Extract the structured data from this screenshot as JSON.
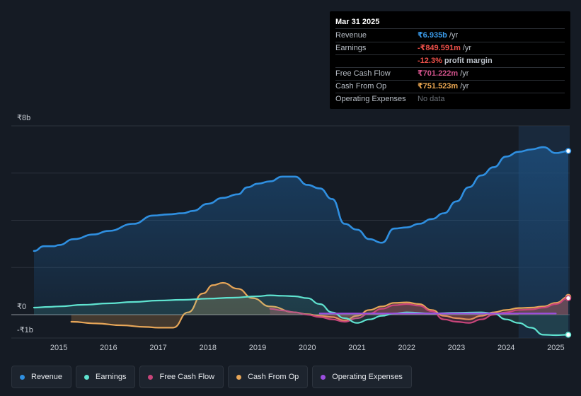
{
  "tooltip": {
    "date": "Mar 31 2025",
    "rows": [
      {
        "label": "Revenue",
        "value": "₹6.935b",
        "unit": "/yr",
        "color": "#3a9bea"
      },
      {
        "label": "Earnings",
        "value": "-₹849.591m",
        "unit": "/yr",
        "color": "#f0514a"
      },
      {
        "label": "",
        "value": "-12.3%",
        "unit": "profit margin",
        "color": "#f0514a"
      },
      {
        "label": "Free Cash Flow",
        "value": "₹701.222m",
        "unit": "/yr",
        "color": "#d0528a"
      },
      {
        "label": "Cash From Op",
        "value": "₹751.523m",
        "unit": "/yr",
        "color": "#eaa651"
      },
      {
        "label": "Operating Expenses",
        "value": "No data",
        "unit": "",
        "color": "#6b7178"
      }
    ]
  },
  "legend": [
    {
      "label": "Revenue",
      "color": "#2f8fe0"
    },
    {
      "label": "Earnings",
      "color": "#5fe3d0"
    },
    {
      "label": "Free Cash Flow",
      "color": "#c8457a"
    },
    {
      "label": "Cash From Op",
      "color": "#e7a658"
    },
    {
      "label": "Operating Expenses",
      "color": "#9b4fe0"
    }
  ],
  "chart_data": {
    "type": "line",
    "title": "",
    "xlabel": "",
    "ylabel": "",
    "y_unit": "₹ billions",
    "ylim": [
      -1,
      8
    ],
    "y_tick_labels": [
      {
        "value": 8,
        "label": "₹8b"
      },
      {
        "value": 0,
        "label": "₹0"
      },
      {
        "value": -1,
        "label": "-₹1b"
      }
    ],
    "x_tick_labels": [
      "2015",
      "2016",
      "2017",
      "2018",
      "2019",
      "2020",
      "2021",
      "2022",
      "2023",
      "2024",
      "2025"
    ],
    "highlight_range": [
      2024.25,
      2025.25
    ],
    "series": [
      {
        "name": "Revenue",
        "color": "#2f8fe0",
        "fill": true,
        "points": [
          [
            2014.5,
            2.7
          ],
          [
            2014.7,
            2.9
          ],
          [
            2014.9,
            2.9
          ],
          [
            2015.0,
            2.95
          ],
          [
            2015.3,
            3.2
          ],
          [
            2015.7,
            3.4
          ],
          [
            2016.0,
            3.55
          ],
          [
            2016.5,
            3.85
          ],
          [
            2016.9,
            4.2
          ],
          [
            2017.2,
            4.25
          ],
          [
            2017.5,
            4.3
          ],
          [
            2017.7,
            4.4
          ],
          [
            2018.0,
            4.7
          ],
          [
            2018.3,
            4.95
          ],
          [
            2018.6,
            5.1
          ],
          [
            2018.8,
            5.4
          ],
          [
            2019.0,
            5.55
          ],
          [
            2019.25,
            5.65
          ],
          [
            2019.5,
            5.85
          ],
          [
            2019.75,
            5.85
          ],
          [
            2020.0,
            5.5
          ],
          [
            2020.25,
            5.35
          ],
          [
            2020.5,
            4.9
          ],
          [
            2020.75,
            3.85
          ],
          [
            2021.0,
            3.6
          ],
          [
            2021.25,
            3.2
          ],
          [
            2021.5,
            3.05
          ],
          [
            2021.75,
            3.65
          ],
          [
            2022.0,
            3.7
          ],
          [
            2022.25,
            3.85
          ],
          [
            2022.5,
            4.05
          ],
          [
            2022.75,
            4.3
          ],
          [
            2023.0,
            4.8
          ],
          [
            2023.25,
            5.4
          ],
          [
            2023.5,
            5.9
          ],
          [
            2023.75,
            6.25
          ],
          [
            2024.0,
            6.7
          ],
          [
            2024.25,
            6.9
          ],
          [
            2024.5,
            7.0
          ],
          [
            2024.75,
            7.1
          ],
          [
            2025.0,
            6.85
          ],
          [
            2025.25,
            6.935
          ]
        ]
      },
      {
        "name": "Earnings",
        "color": "#5fe3d0",
        "fill": true,
        "points": [
          [
            2014.5,
            0.3
          ],
          [
            2014.8,
            0.33
          ],
          [
            2015.0,
            0.35
          ],
          [
            2015.5,
            0.42
          ],
          [
            2016.0,
            0.48
          ],
          [
            2016.5,
            0.54
          ],
          [
            2017.0,
            0.6
          ],
          [
            2017.5,
            0.63
          ],
          [
            2018.0,
            0.68
          ],
          [
            2018.5,
            0.72
          ],
          [
            2019.0,
            0.78
          ],
          [
            2019.25,
            0.82
          ],
          [
            2019.5,
            0.8
          ],
          [
            2019.75,
            0.78
          ],
          [
            2020.0,
            0.7
          ],
          [
            2020.25,
            0.45
          ],
          [
            2020.5,
            0.1
          ],
          [
            2020.75,
            -0.15
          ],
          [
            2021.0,
            -0.35
          ],
          [
            2021.25,
            -0.2
          ],
          [
            2021.5,
            -0.05
          ],
          [
            2021.75,
            0.05
          ],
          [
            2022.0,
            0.1
          ],
          [
            2022.5,
            0.05
          ],
          [
            2023.0,
            0.08
          ],
          [
            2023.5,
            0.1
          ],
          [
            2023.75,
            0.05
          ],
          [
            2024.0,
            -0.2
          ],
          [
            2024.25,
            -0.35
          ],
          [
            2024.5,
            -0.55
          ],
          [
            2024.75,
            -0.85
          ],
          [
            2025.0,
            -0.87
          ],
          [
            2025.25,
            -0.85
          ]
        ]
      },
      {
        "name": "Free Cash Flow",
        "color": "#c8457a",
        "fill": true,
        "points": [
          [
            2019.25,
            0.25
          ],
          [
            2019.5,
            0.18
          ],
          [
            2019.75,
            0.1
          ],
          [
            2020.0,
            0.0
          ],
          [
            2020.25,
            -0.1
          ],
          [
            2020.5,
            -0.2
          ],
          [
            2020.75,
            -0.3
          ],
          [
            2021.0,
            -0.15
          ],
          [
            2021.25,
            0.05
          ],
          [
            2021.5,
            0.25
          ],
          [
            2021.75,
            0.4
          ],
          [
            2022.0,
            0.45
          ],
          [
            2022.25,
            0.38
          ],
          [
            2022.5,
            0.15
          ],
          [
            2022.75,
            -0.2
          ],
          [
            2023.0,
            -0.3
          ],
          [
            2023.25,
            -0.35
          ],
          [
            2023.5,
            -0.2
          ],
          [
            2023.75,
            0.0
          ],
          [
            2024.0,
            0.1
          ],
          [
            2024.25,
            0.2
          ],
          [
            2024.5,
            0.22
          ],
          [
            2024.75,
            0.3
          ],
          [
            2025.0,
            0.45
          ],
          [
            2025.25,
            0.701
          ]
        ]
      },
      {
        "name": "Cash From Op",
        "color": "#e7a658",
        "fill": true,
        "points": [
          [
            2015.25,
            -0.3
          ],
          [
            2015.75,
            -0.37
          ],
          [
            2016.25,
            -0.45
          ],
          [
            2016.75,
            -0.52
          ],
          [
            2017.0,
            -0.55
          ],
          [
            2017.3,
            -0.55
          ],
          [
            2017.6,
            0.1
          ],
          [
            2017.9,
            0.9
          ],
          [
            2018.1,
            1.25
          ],
          [
            2018.3,
            1.35
          ],
          [
            2018.6,
            1.1
          ],
          [
            2018.9,
            0.7
          ],
          [
            2019.25,
            0.35
          ],
          [
            2019.75,
            0.1
          ],
          [
            2020.0,
            0.02
          ],
          [
            2020.25,
            -0.05
          ],
          [
            2020.5,
            -0.1
          ],
          [
            2020.75,
            -0.25
          ],
          [
            2021.0,
            -0.05
          ],
          [
            2021.25,
            0.2
          ],
          [
            2021.5,
            0.35
          ],
          [
            2021.75,
            0.5
          ],
          [
            2022.0,
            0.52
          ],
          [
            2022.25,
            0.45
          ],
          [
            2022.5,
            0.2
          ],
          [
            2022.75,
            -0.05
          ],
          [
            2023.0,
            -0.15
          ],
          [
            2023.25,
            -0.2
          ],
          [
            2023.5,
            -0.05
          ],
          [
            2023.75,
            0.1
          ],
          [
            2024.0,
            0.2
          ],
          [
            2024.25,
            0.28
          ],
          [
            2024.5,
            0.3
          ],
          [
            2024.75,
            0.35
          ],
          [
            2025.0,
            0.5
          ],
          [
            2025.25,
            0.752
          ]
        ]
      },
      {
        "name": "Operating Expenses",
        "color": "#9b4fe0",
        "fill": false,
        "points": [
          [
            2020.25,
            0.05
          ],
          [
            2021.0,
            0.05
          ],
          [
            2022.0,
            0.05
          ],
          [
            2023.0,
            0.05
          ],
          [
            2024.0,
            0.05
          ],
          [
            2025.0,
            0.05
          ]
        ]
      }
    ]
  }
}
